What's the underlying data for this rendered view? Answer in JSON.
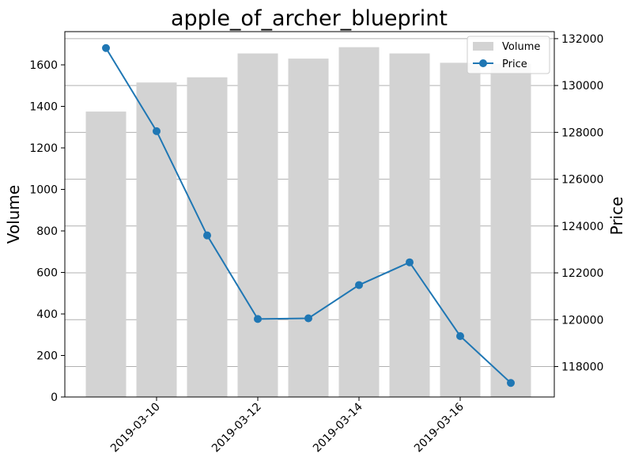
{
  "chart_data": {
    "type": "bar",
    "title": "apple_of_archer_blueprint",
    "xlabel": "",
    "ylabel": "Volume",
    "y2label": "Price",
    "dates": [
      "2019-03-09",
      "2019-03-10",
      "2019-03-11",
      "2019-03-12",
      "2019-03-13",
      "2019-03-14",
      "2019-03-15",
      "2019-03-16",
      "2019-03-17"
    ],
    "x_ticks": [
      "2019-03-10",
      "2019-03-12",
      "2019-03-14",
      "2019-03-16"
    ],
    "ylim": [
      0,
      1760
    ],
    "y_ticks": [
      0,
      200,
      400,
      600,
      800,
      1000,
      1200,
      1400,
      1600
    ],
    "y2lim": [
      116700,
      132300
    ],
    "y2_ticks": [
      118000,
      120000,
      122000,
      124000,
      126000,
      128000,
      130000,
      132000
    ],
    "series": [
      {
        "name": "Volume",
        "type": "bar",
        "color": "#d3d3d3",
        "values": [
          1375,
          1515,
          1540,
          1655,
          1630,
          1685,
          1655,
          1610,
          1605
        ]
      },
      {
        "name": "Price",
        "type": "line",
        "color": "#1f77b4",
        "values": [
          131600,
          128050,
          123600,
          120030,
          120060,
          121480,
          122450,
          119300,
          117300
        ]
      }
    ],
    "grid": "y2",
    "legend": "top-right"
  }
}
